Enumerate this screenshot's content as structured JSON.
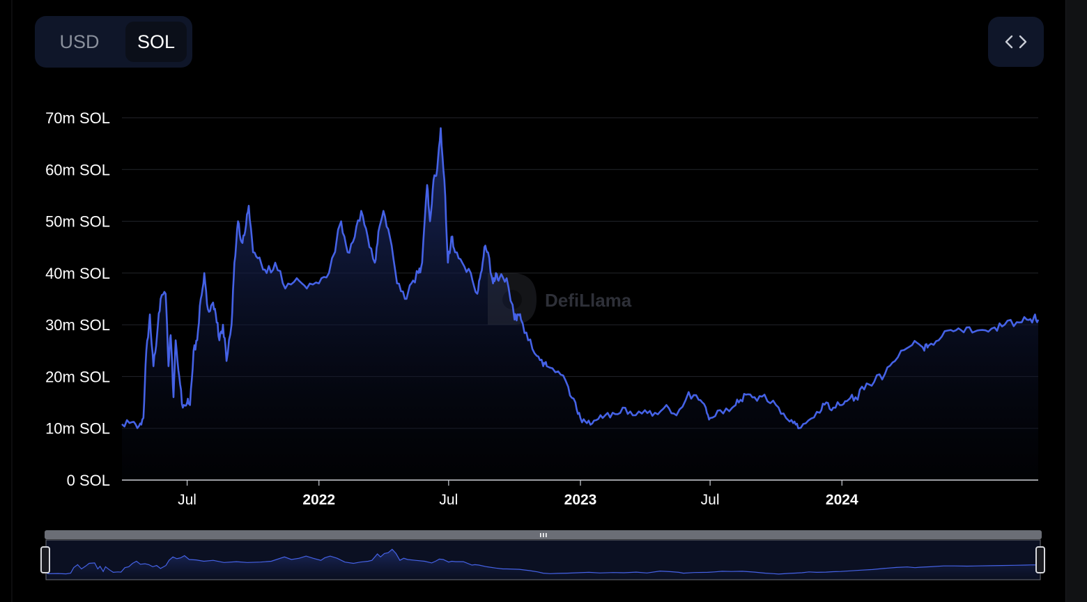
{
  "toggle": {
    "usd_label": "USD",
    "sol_label": "SOL",
    "selected": "SOL"
  },
  "embed_button": {
    "icon": "code-icon"
  },
  "watermark": {
    "text": "DefiLlama"
  },
  "colors": {
    "line": "#4562e6",
    "area_top": "#1c2b66",
    "grid": "#23252b",
    "toggle_bg": "#0f1629",
    "text": "#ffffff"
  },
  "chart_data": {
    "type": "area",
    "ylim": [
      0,
      70
    ],
    "y_unit": "m SOL",
    "y_ticks": [
      {
        "value": 0,
        "label": "0 SOL"
      },
      {
        "value": 10,
        "label": "10m SOL"
      },
      {
        "value": 20,
        "label": "20m SOL"
      },
      {
        "value": 30,
        "label": "30m SOL"
      },
      {
        "value": 40,
        "label": "40m SOL"
      },
      {
        "value": 50,
        "label": "50m SOL"
      },
      {
        "value": 60,
        "label": "60m SOL"
      },
      {
        "value": 70,
        "label": "70m SOL"
      }
    ],
    "x_range": [
      "2021-04-01",
      "2024-10-01"
    ],
    "x_ticks": [
      {
        "date": "2021-07-01",
        "label": "Jul",
        "bold": false
      },
      {
        "date": "2022-01-01",
        "label": "2022",
        "bold": true
      },
      {
        "date": "2022-07-01",
        "label": "Jul",
        "bold": false
      },
      {
        "date": "2023-01-01",
        "label": "2023",
        "bold": true
      },
      {
        "date": "2023-07-01",
        "label": "Jul",
        "bold": false
      },
      {
        "date": "2024-01-01",
        "label": "2024",
        "bold": true
      }
    ],
    "grid": true,
    "series": [
      {
        "x": [
          "2021-04-01",
          "2021-04-15",
          "2021-04-25",
          "2021-05-01",
          "2021-05-05",
          "2021-05-10",
          "2021-05-15",
          "2021-05-20",
          "2021-05-25",
          "2021-06-01",
          "2021-06-05",
          "2021-06-08",
          "2021-06-12",
          "2021-06-15",
          "2021-06-20",
          "2021-06-25",
          "2021-07-01",
          "2021-07-05",
          "2021-07-10",
          "2021-07-15",
          "2021-07-20",
          "2021-07-25",
          "2021-07-30",
          "2021-08-05",
          "2021-08-10",
          "2021-08-15",
          "2021-08-20",
          "2021-08-25",
          "2021-09-01",
          "2021-09-05",
          "2021-09-10",
          "2021-09-15",
          "2021-09-20",
          "2021-09-25",
          "2021-10-01",
          "2021-10-10",
          "2021-10-20",
          "2021-11-01",
          "2021-11-15",
          "2021-12-01",
          "2021-12-15",
          "2022-01-01",
          "2022-01-15",
          "2022-02-01",
          "2022-02-10",
          "2022-02-20",
          "2022-03-01",
          "2022-03-10",
          "2022-03-20",
          "2022-03-25",
          "2022-04-01",
          "2022-04-10",
          "2022-04-20",
          "2022-05-01",
          "2022-05-10",
          "2022-05-20",
          "2022-05-25",
          "2022-06-01",
          "2022-06-05",
          "2022-06-10",
          "2022-06-15",
          "2022-06-20",
          "2022-06-25",
          "2022-06-30",
          "2022-07-05",
          "2022-07-10",
          "2022-07-20",
          "2022-08-01",
          "2022-08-10",
          "2022-08-15",
          "2022-08-20",
          "2022-08-25",
          "2022-09-01",
          "2022-09-05",
          "2022-09-10",
          "2022-09-20",
          "2022-10-01",
          "2022-10-05",
          "2022-10-10",
          "2022-10-20",
          "2022-11-01",
          "2022-11-10",
          "2022-11-15",
          "2022-12-01",
          "2022-12-15",
          "2022-12-25",
          "2023-01-01",
          "2023-01-10",
          "2023-01-20",
          "2023-02-01",
          "2023-02-15",
          "2023-03-01",
          "2023-03-15",
          "2023-04-01",
          "2023-04-15",
          "2023-05-01",
          "2023-05-15",
          "2023-06-01",
          "2023-06-15",
          "2023-06-25",
          "2023-07-01",
          "2023-07-15",
          "2023-08-01",
          "2023-08-10",
          "2023-08-20",
          "2023-09-01",
          "2023-09-15",
          "2023-10-01",
          "2023-10-15",
          "2023-10-25",
          "2023-11-01",
          "2023-11-15",
          "2023-12-01",
          "2023-12-10",
          "2023-12-20",
          "2024-01-01",
          "2024-01-10",
          "2024-01-20",
          "2024-02-01",
          "2024-02-15",
          "2024-03-01",
          "2024-03-15",
          "2024-04-01",
          "2024-04-15",
          "2024-04-25",
          "2024-05-01",
          "2024-05-15",
          "2024-06-01",
          "2024-06-15",
          "2024-07-01",
          "2024-07-15",
          "2024-08-01",
          "2024-08-15",
          "2024-09-01",
          "2024-09-15",
          "2024-09-25",
          "2024-10-01"
        ],
        "y": [
          10.8,
          11.2,
          10.5,
          12.0,
          25.0,
          32.0,
          22.0,
          28.0,
          35.0,
          36.0,
          22.0,
          28.0,
          16.0,
          27.0,
          20.0,
          14.0,
          15.0,
          14.5,
          25.0,
          27.0,
          35.0,
          40.0,
          33.0,
          34.0,
          32.0,
          27.0,
          30.0,
          23.0,
          30.0,
          42.0,
          50.0,
          46.0,
          48.0,
          53.0,
          44.0,
          43.0,
          40.0,
          42.0,
          37.0,
          39.0,
          37.0,
          38.0,
          40.0,
          50.0,
          44.0,
          47.0,
          52.0,
          47.0,
          42.0,
          48.0,
          52.0,
          47.0,
          38.0,
          35.0,
          38.0,
          40.0,
          42.0,
          57.0,
          50.0,
          58.0,
          60.0,
          68.0,
          58.0,
          42.0,
          47.0,
          44.0,
          42.0,
          40.0,
          36.0,
          40.0,
          45.0,
          44.0,
          38.0,
          40.0,
          39.0,
          39.0,
          31.0,
          32.0,
          31.0,
          27.0,
          24.0,
          22.0,
          22.0,
          21.0,
          18.0,
          15.0,
          12.0,
          11.0,
          11.5,
          12.0,
          13.0,
          14.0,
          12.5,
          13.5,
          13.0,
          14.5,
          12.5,
          17.0,
          15.5,
          14.0,
          12.0,
          13.5,
          14.0,
          15.0,
          16.5,
          16.0,
          16.5,
          14.5,
          12.0,
          11.0,
          10.0,
          11.5,
          13.0,
          15.0,
          14.0,
          14.5,
          15.5,
          16.0,
          17.5,
          19.0,
          20.5,
          23.0,
          25.5,
          26.5,
          25.0,
          26.0,
          27.0,
          29.0,
          29.0,
          28.5,
          29.0,
          29.5,
          30.0,
          30.5,
          31.0,
          31.5,
          31.0
        ]
      }
    ]
  }
}
